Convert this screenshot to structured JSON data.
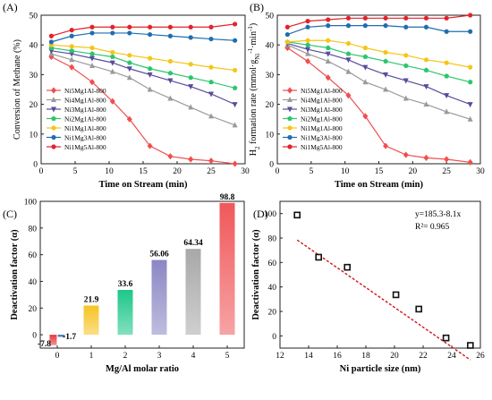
{
  "chart_data": [
    {
      "panel": "(A)",
      "type": "line",
      "xlabel": "Time on Stream (min)",
      "ylabel": "Conversion of Methane (%)",
      "xlim": [
        0,
        30
      ],
      "ylim": [
        0,
        50
      ],
      "xticks": [
        0,
        5,
        10,
        15,
        20,
        25,
        30
      ],
      "yticks": [
        0,
        10,
        20,
        30,
        40,
        50
      ],
      "x": [
        1.5,
        4.5,
        7.5,
        10.5,
        13,
        16,
        19,
        22,
        25,
        28.5
      ],
      "legend_position": "bottom-left",
      "series": [
        {
          "name": "Ni5Mg1Al-800",
          "color": "#f04e4e",
          "marker": "diamond",
          "values": [
            36,
            32.5,
            27.5,
            21,
            15,
            6,
            2.5,
            1.5,
            1,
            0
          ]
        },
        {
          "name": "Ni4Mg1Al-800",
          "color": "#9a9a9a",
          "marker": "triangle-up",
          "values": [
            37,
            35,
            33,
            31,
            29,
            25,
            22,
            19,
            16,
            13
          ]
        },
        {
          "name": "Ni3Mg1Al-800",
          "color": "#5b4a9c",
          "marker": "triangle-down",
          "values": [
            38,
            37,
            35.5,
            34,
            32,
            30,
            28,
            26,
            23.5,
            20
          ]
        },
        {
          "name": "Ni2Mg1Al-800",
          "color": "#2bc66d",
          "marker": "pentagon",
          "values": [
            39,
            38,
            37,
            36,
            34,
            32,
            30.5,
            29,
            27.5,
            25.5
          ]
        },
        {
          "name": "Ni1Mg1Al-800",
          "color": "#f5c518",
          "marker": "circle",
          "values": [
            40,
            39.5,
            39,
            37.5,
            36.5,
            35.5,
            34.5,
            33.5,
            32.5,
            31.5
          ]
        },
        {
          "name": "Ni1Mg3Al-800",
          "color": "#1f6eb0",
          "marker": "circle",
          "values": [
            41,
            43,
            44,
            44,
            44,
            43.5,
            43,
            42.5,
            42,
            41.5
          ]
        },
        {
          "name": "Ni1Mg5Al-800",
          "color": "#e3222b",
          "marker": "circle",
          "values": [
            43,
            45,
            46,
            46,
            46,
            46,
            46,
            46,
            46,
            47
          ]
        }
      ]
    },
    {
      "panel": "(B)",
      "type": "line",
      "xlabel": "Time on Stream (min)",
      "ylabel": "H2 formation rate (mmol·gNi-1·min-1)",
      "ylabel_parts": [
        "H",
        "2",
        " formation rate (mmol·g",
        "Ni",
        "-1",
        "·min",
        "-1",
        ")"
      ],
      "xlim": [
        0,
        30
      ],
      "ylim": [
        0,
        50
      ],
      "xticks": [
        0,
        5,
        10,
        15,
        20,
        25,
        30
      ],
      "yticks": [
        0,
        10,
        20,
        30,
        40,
        50
      ],
      "x": [
        1.5,
        4.5,
        7.5,
        10.5,
        13,
        16,
        19,
        22,
        25,
        28.5
      ],
      "legend_position": "bottom-left",
      "series": [
        {
          "name": "Ni5Mg1Al-800",
          "color": "#f04e4e",
          "marker": "diamond",
          "values": [
            39,
            34.5,
            29,
            23,
            16,
            6,
            3,
            2,
            1.5,
            0.5
          ]
        },
        {
          "name": "Ni4Mg1Al-800",
          "color": "#9a9a9a",
          "marker": "triangle-up",
          "values": [
            40,
            37,
            34.5,
            31,
            27.5,
            25,
            22,
            20,
            17.5,
            15
          ]
        },
        {
          "name": "Ni3Mg1Al-800",
          "color": "#5b4a9c",
          "marker": "triangle-down",
          "values": [
            40.5,
            38.5,
            37,
            35,
            32.5,
            30,
            28,
            26,
            23,
            20
          ]
        },
        {
          "name": "Ni2Mg1Al-800",
          "color": "#2bc66d",
          "marker": "pentagon",
          "values": [
            41,
            40,
            39,
            37,
            36,
            34.5,
            33,
            31.5,
            29.5,
            27.5
          ]
        },
        {
          "name": "Ni1Mg1Al-800",
          "color": "#f5c518",
          "marker": "circle",
          "values": [
            41,
            41.5,
            41.5,
            40.5,
            39,
            37.5,
            36.5,
            35,
            34,
            32.5
          ]
        },
        {
          "name": "Ni1Mg3Al-800",
          "color": "#1f6eb0",
          "marker": "circle",
          "values": [
            43.5,
            46,
            46.5,
            46.5,
            46.5,
            46.5,
            46,
            46,
            44.5,
            44.5
          ]
        },
        {
          "name": "Ni1Mg5Al-800",
          "color": "#e3222b",
          "marker": "circle",
          "values": [
            46,
            48,
            48.5,
            49,
            49,
            49,
            49,
            49,
            49,
            50
          ]
        }
      ]
    },
    {
      "panel": "(C)",
      "type": "bar",
      "xlabel": "Mg/Al molar ratio",
      "ylabel": "Deactivation factor (α)",
      "xlim": [
        -0.5,
        5.5
      ],
      "ylim": [
        -10,
        100
      ],
      "xticks": [
        0,
        1,
        2,
        3,
        4,
        5
      ],
      "yticks": [
        -20,
        0,
        20,
        40,
        60,
        80,
        100
      ],
      "categories": [
        "0",
        "1",
        "2",
        "3",
        "4",
        "5"
      ],
      "bars": [
        {
          "x": -0.12,
          "value": -7.8,
          "label": "-7.8",
          "color": "#e8393d"
        },
        {
          "x": 0.12,
          "value": -1.7,
          "label": "-1.7",
          "color": "#2a5fa8"
        },
        {
          "x": 1,
          "value": 21.9,
          "label": "21.9",
          "color": "#f6c425"
        },
        {
          "x": 2,
          "value": 33.6,
          "label": "33.6",
          "color": "#1dc78a"
        },
        {
          "x": 3,
          "value": 56.06,
          "label": "56.06",
          "color": "#8a87c4"
        },
        {
          "x": 4,
          "value": 64.34,
          "label": "64.34",
          "color": "#a8a8a8"
        },
        {
          "x": 5,
          "value": 98.8,
          "label": "98.8",
          "color": "#f0585a"
        }
      ]
    },
    {
      "panel": "(D)",
      "type": "scatter",
      "xlabel": "Ni particle size (nm)",
      "ylabel": "Deactivation factor (α)",
      "xlim": [
        12,
        26
      ],
      "ylim": [
        -10,
        110
      ],
      "xticks": [
        12,
        14,
        16,
        18,
        20,
        22,
        24,
        26
      ],
      "yticks": [
        0,
        20,
        40,
        60,
        80,
        100
      ],
      "points": [
        {
          "x": 13.2,
          "y": 98.8
        },
        {
          "x": 14.7,
          "y": 64.3
        },
        {
          "x": 16.7,
          "y": 56.1
        },
        {
          "x": 20.1,
          "y": 33.6
        },
        {
          "x": 21.7,
          "y": 21.9
        },
        {
          "x": 23.6,
          "y": -1.7
        },
        {
          "x": 25.3,
          "y": -7.8
        }
      ],
      "fit": {
        "intercept": 185.3,
        "slope": -8.1,
        "x_range": [
          13.2,
          25.3
        ],
        "color": "#d0141a"
      },
      "annotation": [
        "y=185.3-8.1x",
        "R²= 0.965"
      ]
    }
  ]
}
